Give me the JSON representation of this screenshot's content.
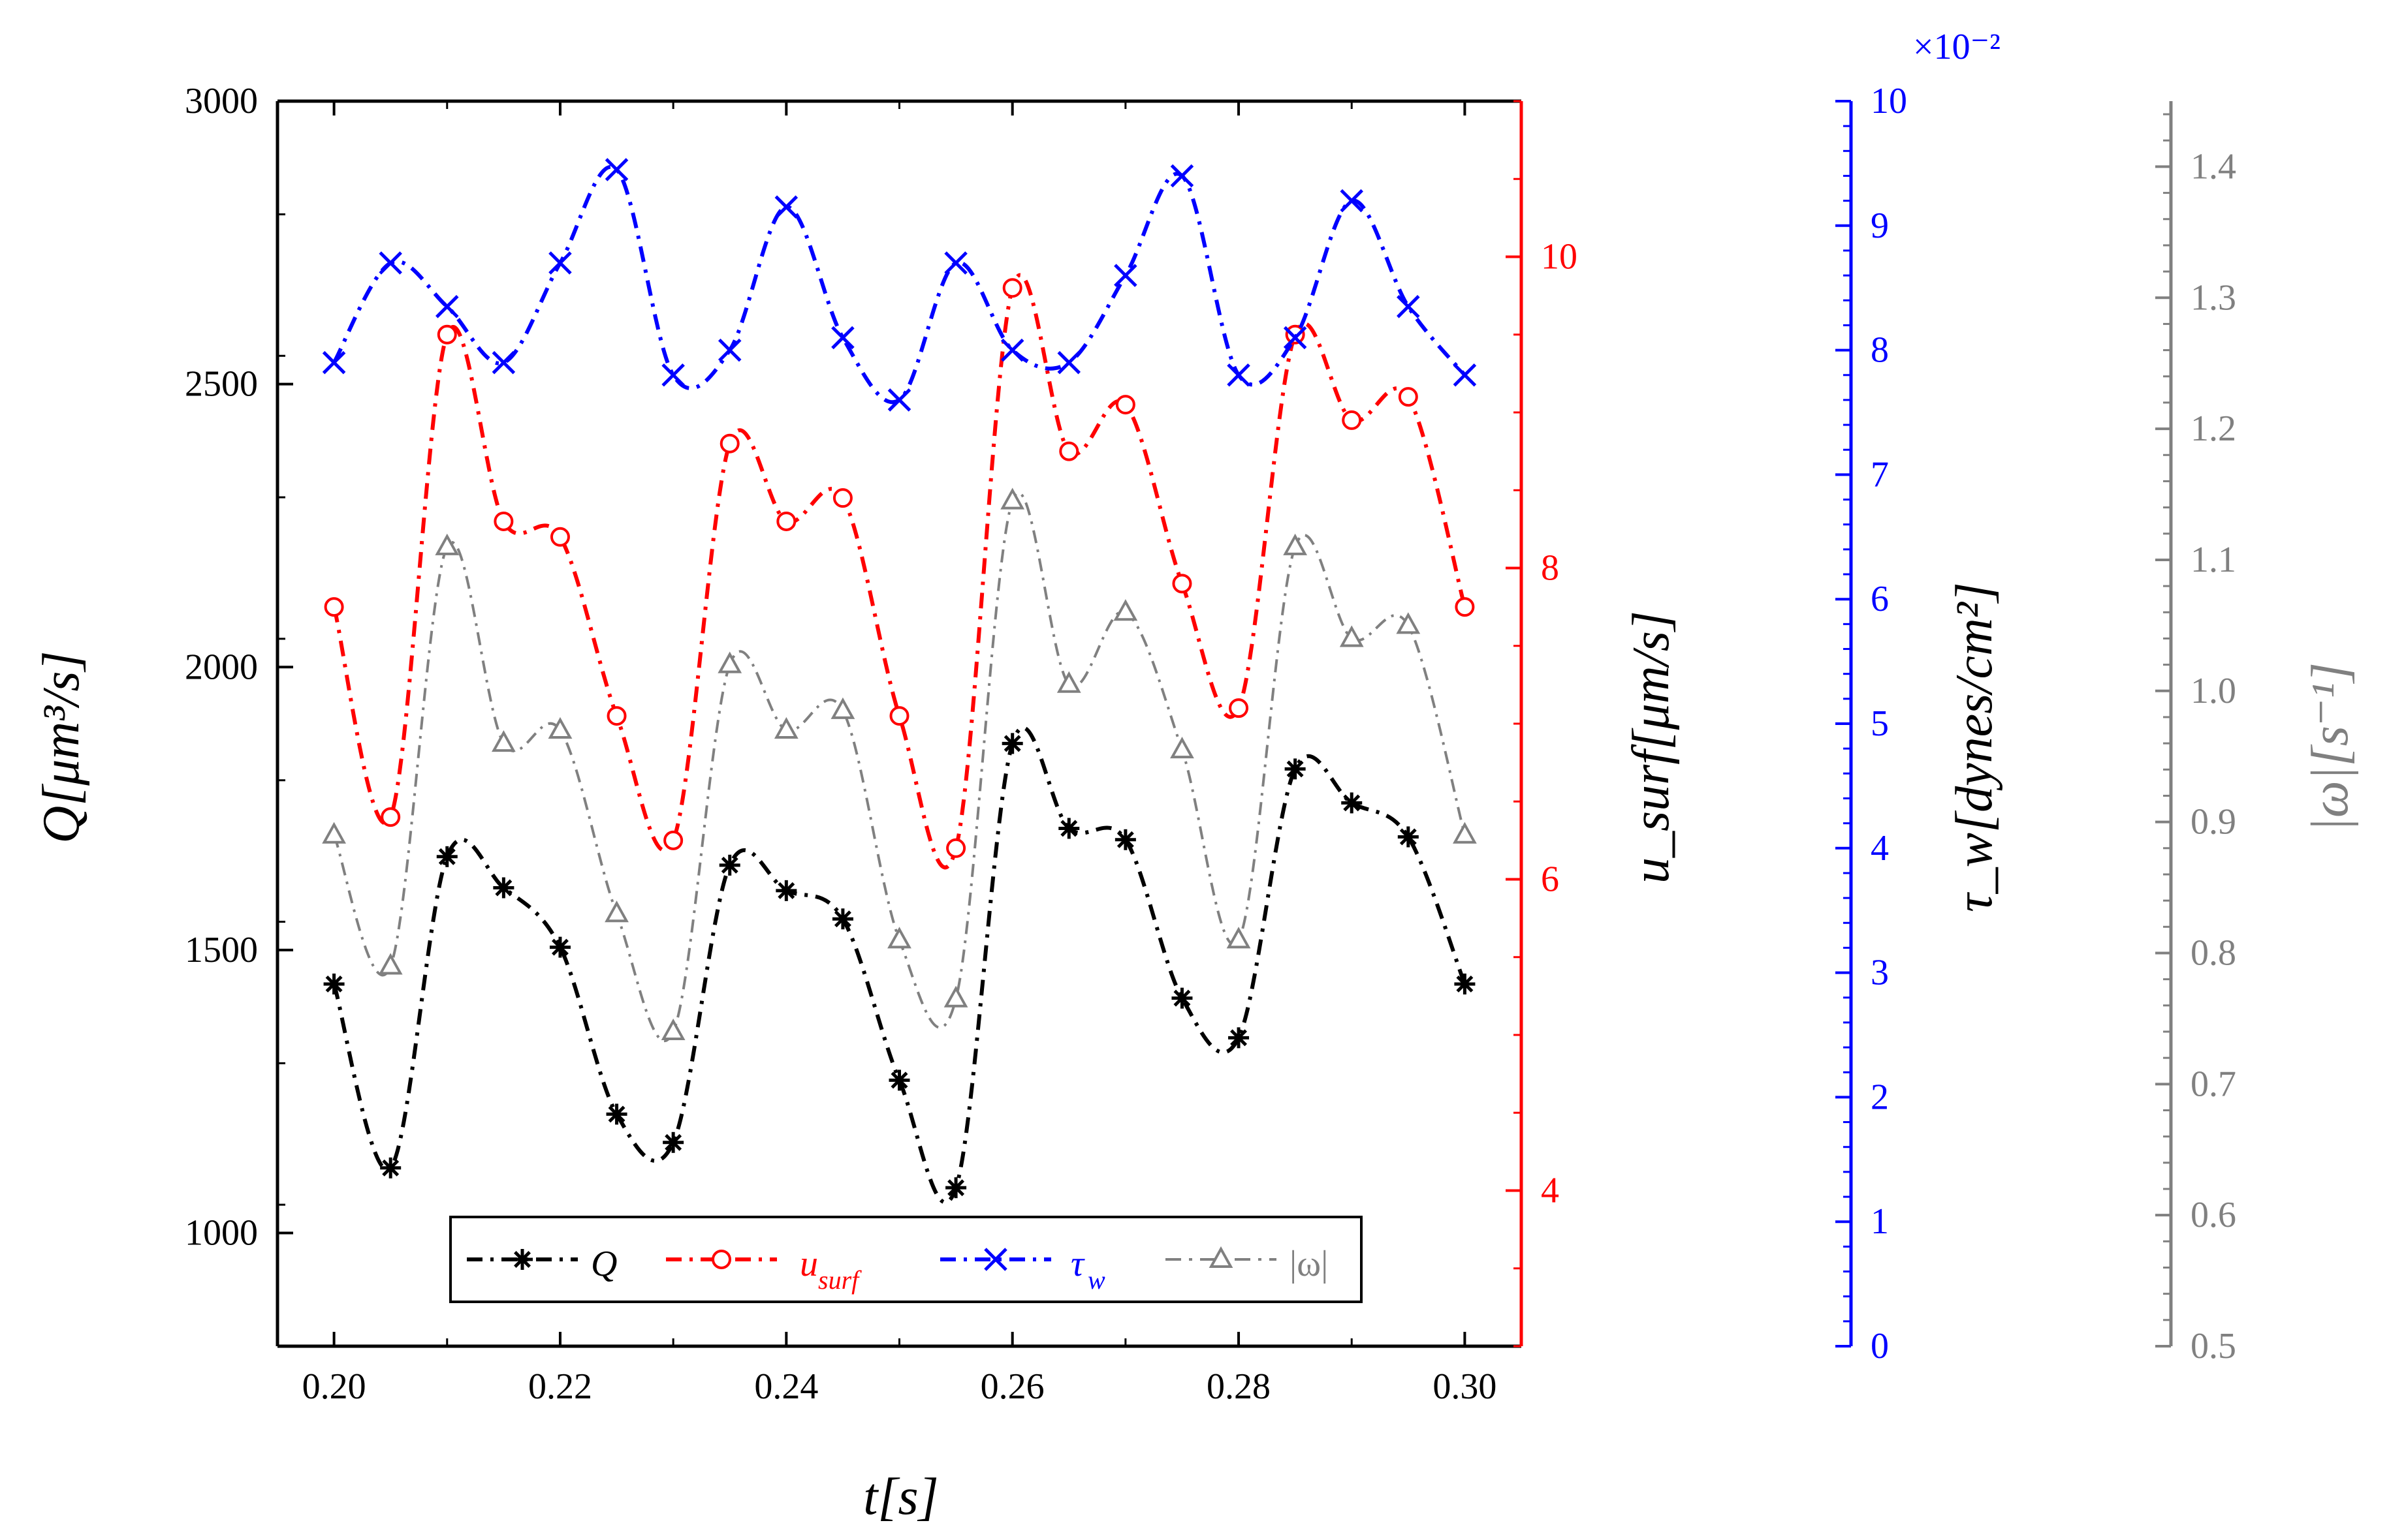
{
  "chart_data": {
    "type": "line",
    "title": "",
    "x": [
      0.2,
      0.205,
      0.21,
      0.215,
      0.22,
      0.225,
      0.23,
      0.235,
      0.24,
      0.245,
      0.25,
      0.255,
      0.26,
      0.265,
      0.27,
      0.275,
      0.28,
      0.285,
      0.29,
      0.295,
      0.3
    ],
    "xlabel": "t[s]",
    "xlim": [
      0.195,
      0.305
    ],
    "xticks": [
      "0.20",
      "0.22",
      "0.24",
      "0.26",
      "0.28",
      "0.30"
    ],
    "axes": [
      {
        "id": "Q",
        "label": "Q[μm³/s]",
        "color": "#000000",
        "range": [
          800,
          3000
        ],
        "ticks": [
          "1000",
          "1500",
          "2000",
          "2500",
          "3000"
        ],
        "position": "left"
      },
      {
        "id": "usurf",
        "label": "u_surf[μm/s]",
        "color": "#ff0000",
        "range": [
          3,
          11
        ],
        "ticks": [
          "4",
          "6",
          "8",
          "10"
        ],
        "position": "right"
      },
      {
        "id": "tau",
        "label": "τ_w[dynes/cm²]",
        "color": "#0000ff",
        "range": [
          0,
          10
        ],
        "ticks": [
          "0",
          "1",
          "2",
          "3",
          "4",
          "5",
          "6",
          "7",
          "8",
          "9",
          "10"
        ],
        "multiplier": "×10⁻²",
        "position": "right-offset-1"
      },
      {
        "id": "omega",
        "label": "|ω|[s⁻¹]",
        "color": "#808080",
        "range": [
          0.5,
          1.45
        ],
        "ticks": [
          "0.5",
          "0.6",
          "0.7",
          "0.8",
          "0.9",
          "1.0",
          "1.1",
          "1.2",
          "1.3",
          "1.4"
        ],
        "position": "right-offset-2"
      }
    ],
    "series": [
      {
        "name": "Q",
        "axis": "Q",
        "color": "#000000",
        "marker": "asterisk",
        "values": [
          1440,
          1115,
          1665,
          1610,
          1505,
          1210,
          1160,
          1650,
          1605,
          1555,
          1270,
          1080,
          1865,
          1715,
          1695,
          1415,
          1345,
          1820,
          1760,
          1700,
          1440
        ]
      },
      {
        "name": "u_surf",
        "axis": "usurf",
        "color": "#ff0000",
        "marker": "circle",
        "values": [
          7.75,
          6.4,
          9.5,
          8.3,
          8.2,
          7.05,
          6.25,
          8.8,
          8.3,
          8.45,
          7.05,
          6.2,
          9.8,
          8.75,
          9.05,
          7.9,
          7.1,
          9.5,
          8.95,
          9.1,
          7.75
        ]
      },
      {
        "name": "τ_w",
        "axis": "tau",
        "color": "#0000ff",
        "marker": "x",
        "values": [
          7.9,
          8.7,
          8.35,
          7.9,
          8.7,
          9.45,
          7.8,
          8.0,
          9.15,
          8.1,
          7.6,
          8.7,
          8.0,
          7.9,
          8.6,
          9.4,
          7.8,
          8.1,
          9.2,
          8.35,
          7.8
        ]
      },
      {
        "name": "|ω|",
        "axis": "omega",
        "color": "#808080",
        "marker": "triangle",
        "values": [
          0.89,
          0.79,
          1.11,
          0.96,
          0.97,
          0.83,
          0.74,
          1.02,
          0.97,
          0.985,
          0.81,
          0.765,
          1.145,
          1.005,
          1.06,
          0.955,
          0.81,
          1.11,
          1.04,
          1.05,
          0.89
        ]
      }
    ],
    "legend": {
      "placement": "bottom-center",
      "entries": [
        "Q",
        "u",
        "surf",
        "τ",
        "w",
        "|ω|"
      ]
    },
    "grid": false
  }
}
